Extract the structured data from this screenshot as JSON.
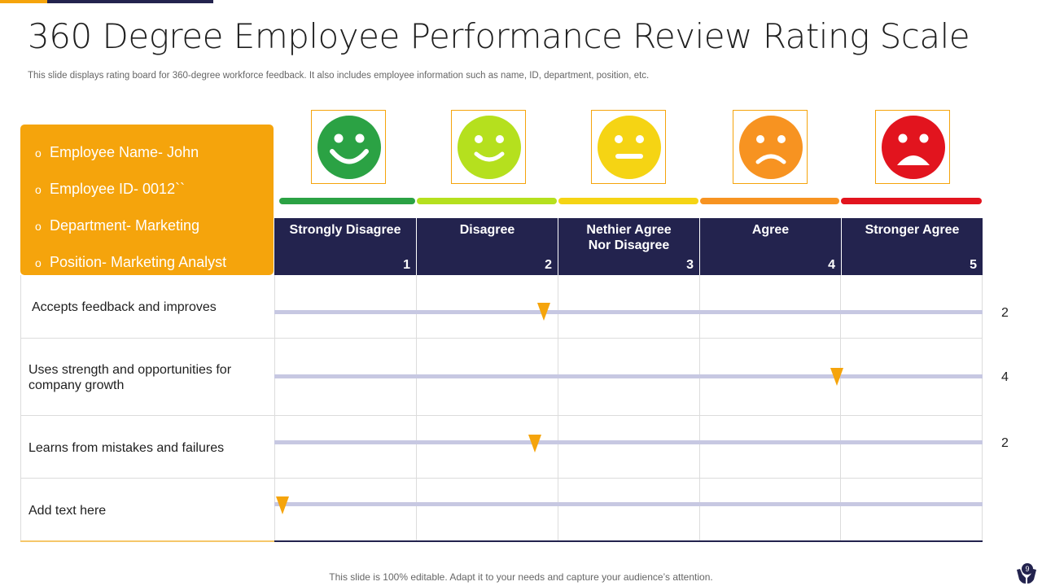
{
  "title": "360 Degree Employee Performance Review Rating Scale",
  "subtitle": "This slide displays rating board for 360-degree workforce feedback. It also includes employee information such as name, ID, department, position, etc.",
  "colors": {
    "accent_orange": "#f5a40c",
    "navy": "#23234e",
    "track": "#c7c8e2",
    "scale": [
      "#2ba244",
      "#b5e01e",
      "#f5d414",
      "#f79321",
      "#e2141e"
    ]
  },
  "employee_info": {
    "bullet": "o",
    "items": [
      {
        "label": "Employee Name- John"
      },
      {
        "label": "Employee ID- 0012``"
      },
      {
        "label": "Department- Marketing"
      },
      {
        "label": "Position- Marketing Analyst"
      }
    ]
  },
  "faces": [
    {
      "icon": "very-happy-face-icon"
    },
    {
      "icon": "happy-face-icon"
    },
    {
      "icon": "neutral-face-icon"
    },
    {
      "icon": "sad-face-icon"
    },
    {
      "icon": "very-sad-face-icon"
    }
  ],
  "scale_headers": [
    {
      "label": "Strongly Disagree",
      "number": "1"
    },
    {
      "label": "Disagree",
      "number": "2"
    },
    {
      "label": "Nethier Agree Nor Disagree",
      "number": "3"
    },
    {
      "label": "Agree",
      "number": "4"
    },
    {
      "label": "Stronger Agree",
      "number": "5"
    }
  ],
  "criteria": [
    {
      "label": "Accepts feedback and improves",
      "score": "2",
      "rating": 1.9
    },
    {
      "label": "Uses strength and opportunities  for company growth",
      "score": "4",
      "rating": 3.97
    },
    {
      "label": "Learns  from mistakes and failures",
      "score": "2",
      "rating": 1.84
    },
    {
      "label": "Add text here",
      "score": "",
      "rating": 0.06
    }
  ],
  "footer": "This slide is 100% editable. Adapt it to your needs and capture your audience’s attention.",
  "page_number": "9"
}
